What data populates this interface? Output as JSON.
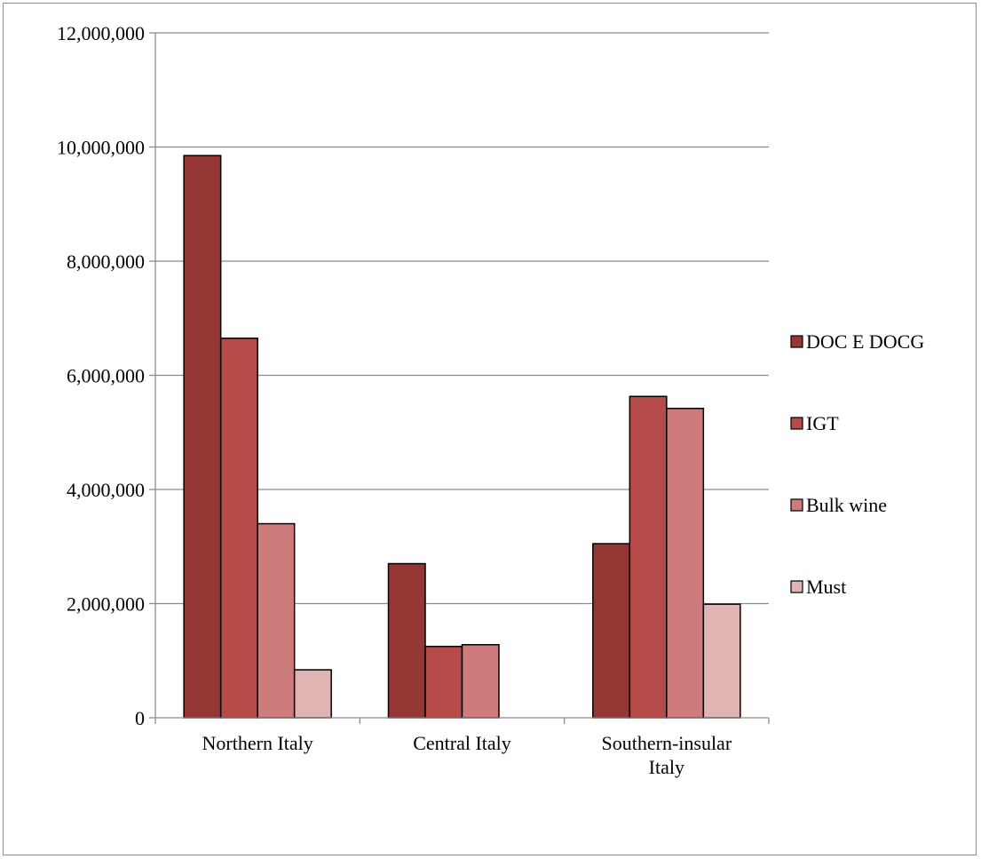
{
  "chart_data": {
    "type": "bar",
    "title": "",
    "xlabel": "",
    "ylabel": "",
    "ylim": [
      0,
      12000000
    ],
    "yticks": [
      0,
      2000000,
      4000000,
      6000000,
      8000000,
      10000000,
      12000000
    ],
    "ytick_labels": [
      "0",
      "2,000,000",
      "4,000,000",
      "6,000,000",
      "8,000,000",
      "10,000,000",
      "12,000,000"
    ],
    "categories": [
      [
        "Northern Italy"
      ],
      [
        "Central Italy"
      ],
      [
        "Southern-insular",
        "Italy"
      ]
    ],
    "series": [
      {
        "name": "DOC E DOCG",
        "color": "#953735",
        "values": [
          9850000,
          2700000,
          3050000
        ]
      },
      {
        "name": "IGT",
        "color": "#b64b49",
        "values": [
          6650000,
          1250000,
          5630000
        ]
      },
      {
        "name": "Bulk wine",
        "color": "#cd7c7b",
        "values": [
          3400000,
          1280000,
          5420000
        ]
      },
      {
        "name": "Must",
        "color": "#e0b4b3",
        "values": [
          840000,
          0,
          1990000
        ]
      }
    ],
    "grid": true,
    "legend_position": "right"
  }
}
